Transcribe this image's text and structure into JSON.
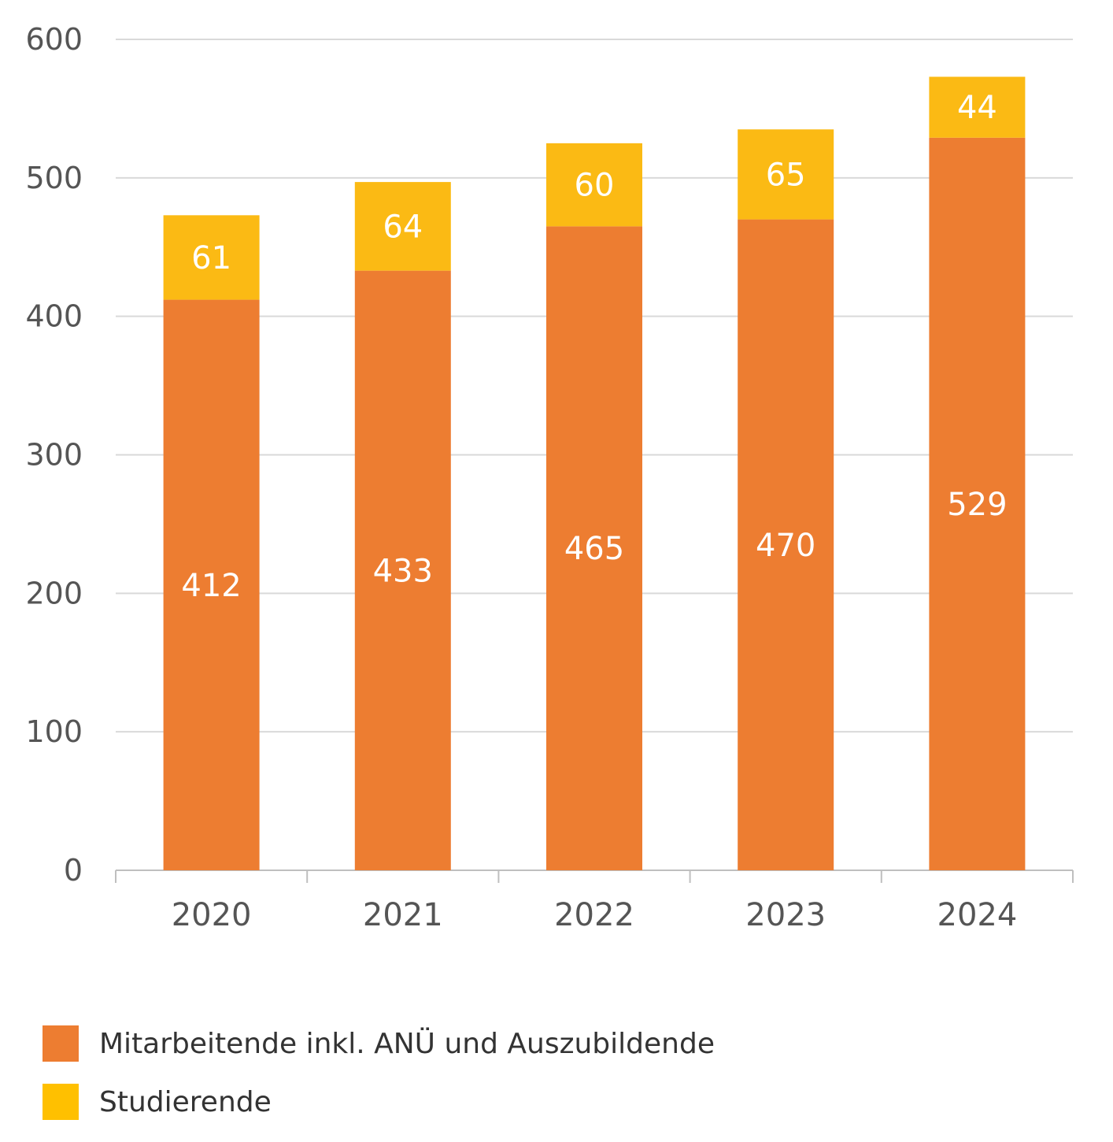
{
  "chart_data": {
    "type": "bar",
    "stacked": true,
    "categories": [
      "2020",
      "2021",
      "2022",
      "2023",
      "2024"
    ],
    "series": [
      {
        "name": "Mitarbeitende inkl. ANÜ und Auszubildende",
        "values": [
          412,
          433,
          465,
          470,
          529
        ],
        "color": "#ED7D31"
      },
      {
        "name": "Studierende",
        "values": [
          61,
          64,
          60,
          65,
          44
        ],
        "color": "#FBBA14"
      }
    ],
    "ylim": [
      0,
      600
    ],
    "yticks": [
      "0",
      "100",
      "200",
      "300",
      "400",
      "500",
      "600"
    ],
    "grid": true,
    "legend_position": "bottom-left",
    "legend_swatch_colors": [
      "#ED7D31",
      "#FFC000"
    ]
  }
}
